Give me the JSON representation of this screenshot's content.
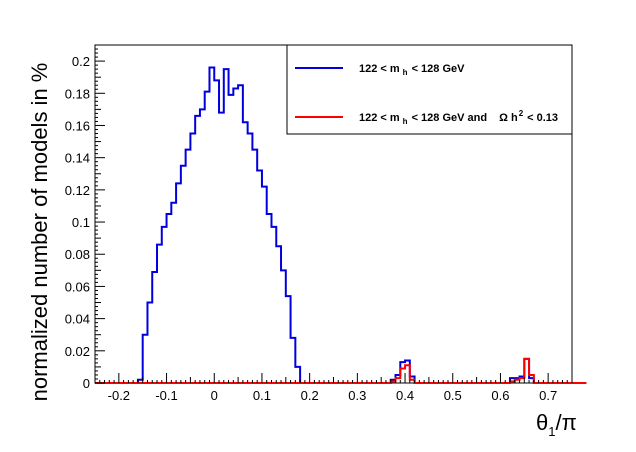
{
  "chart_data": {
    "type": "histogram-step",
    "xlabel": {
      "main": "θ",
      "sub": "1",
      "tail": "/π"
    },
    "ylabel": "normalized number of models in %",
    "xlim": [
      -0.25,
      0.75
    ],
    "ylim": [
      0,
      0.21
    ],
    "xticks": [
      -0.2,
      -0.1,
      0,
      0.1,
      0.2,
      0.3,
      0.4,
      0.5,
      0.6,
      0.7
    ],
    "xtick_labels": [
      "-0.2",
      "-0.1",
      "0",
      "0.1",
      "0.2",
      "0.3",
      "0.4",
      "0.5",
      "0.6",
      "0.7"
    ],
    "yticks": [
      0,
      0.02,
      0.04,
      0.06,
      0.08,
      0.1,
      0.12,
      0.14,
      0.16,
      0.18,
      0.2
    ],
    "ytick_labels": [
      "0",
      "0.02",
      "0.04",
      "0.06",
      "0.08",
      "0.1",
      "0.12",
      "0.14",
      "0.16",
      "0.18",
      "0.2"
    ],
    "grid": false,
    "legend_position": "top-right",
    "bin_start": -0.25,
    "bin_width": 0.01,
    "series": [
      {
        "legend": {
          "a": "122 < m",
          "sub": "h",
          "b": "< 128 GeV"
        },
        "color": "#0000dd",
        "values": [
          0,
          0,
          0,
          0,
          0,
          0,
          0,
          0,
          0,
          0.002,
          0.03,
          0.05,
          0.069,
          0.086,
          0.097,
          0.105,
          0.112,
          0.124,
          0.135,
          0.145,
          0.155,
          0.166,
          0.17,
          0.181,
          0.196,
          0.188,
          0.168,
          0.195,
          0.179,
          0.183,
          0.185,
          0.162,
          0.155,
          0.145,
          0.132,
          0.122,
          0.105,
          0.097,
          0.085,
          0.07,
          0.054,
          0.028,
          0.01,
          0,
          0,
          0,
          0,
          0,
          0,
          0,
          0,
          0,
          0,
          0,
          0,
          0,
          0,
          0,
          0,
          0,
          0,
          0,
          0.002,
          0.005,
          0.013,
          0.014,
          0.004,
          0,
          0,
          0,
          0,
          0,
          0,
          0,
          0,
          0,
          0,
          0,
          0,
          0,
          0,
          0,
          0,
          0,
          0,
          0,
          0,
          0.003,
          0.003,
          0.004,
          0.015,
          0.003,
          0,
          0,
          0,
          0,
          0,
          0,
          0,
          0,
          0,
          0,
          0
        ]
      },
      {
        "legend": {
          "a": "122 < m",
          "sub": "h",
          "b": "< 128 GeV and",
          "omega": "Ω h",
          "sup": "2",
          "c": "< 0.13"
        },
        "color": "#ff0000",
        "values": [
          0,
          0,
          0,
          0,
          0,
          0,
          0,
          0,
          0,
          0,
          0,
          0,
          0,
          0,
          0,
          0,
          0,
          0,
          0,
          0,
          0,
          0,
          0,
          0,
          0,
          0,
          0,
          0,
          0,
          0,
          0,
          0,
          0,
          0,
          0,
          0,
          0,
          0,
          0,
          0,
          0,
          0,
          0,
          0,
          0,
          0,
          0,
          0,
          0,
          0,
          0,
          0,
          0,
          0,
          0,
          0,
          0,
          0,
          0,
          0,
          0,
          0,
          0.001,
          0.003,
          0.009,
          0.011,
          0.002,
          0,
          0,
          0,
          0,
          0,
          0,
          0,
          0,
          0,
          0,
          0,
          0,
          0,
          0,
          0,
          0,
          0,
          0,
          0,
          0,
          0.001,
          0.002,
          0.003,
          0.015,
          0.005,
          0,
          0,
          0,
          0,
          0,
          0,
          0,
          0,
          0,
          0,
          0
        ]
      }
    ]
  }
}
